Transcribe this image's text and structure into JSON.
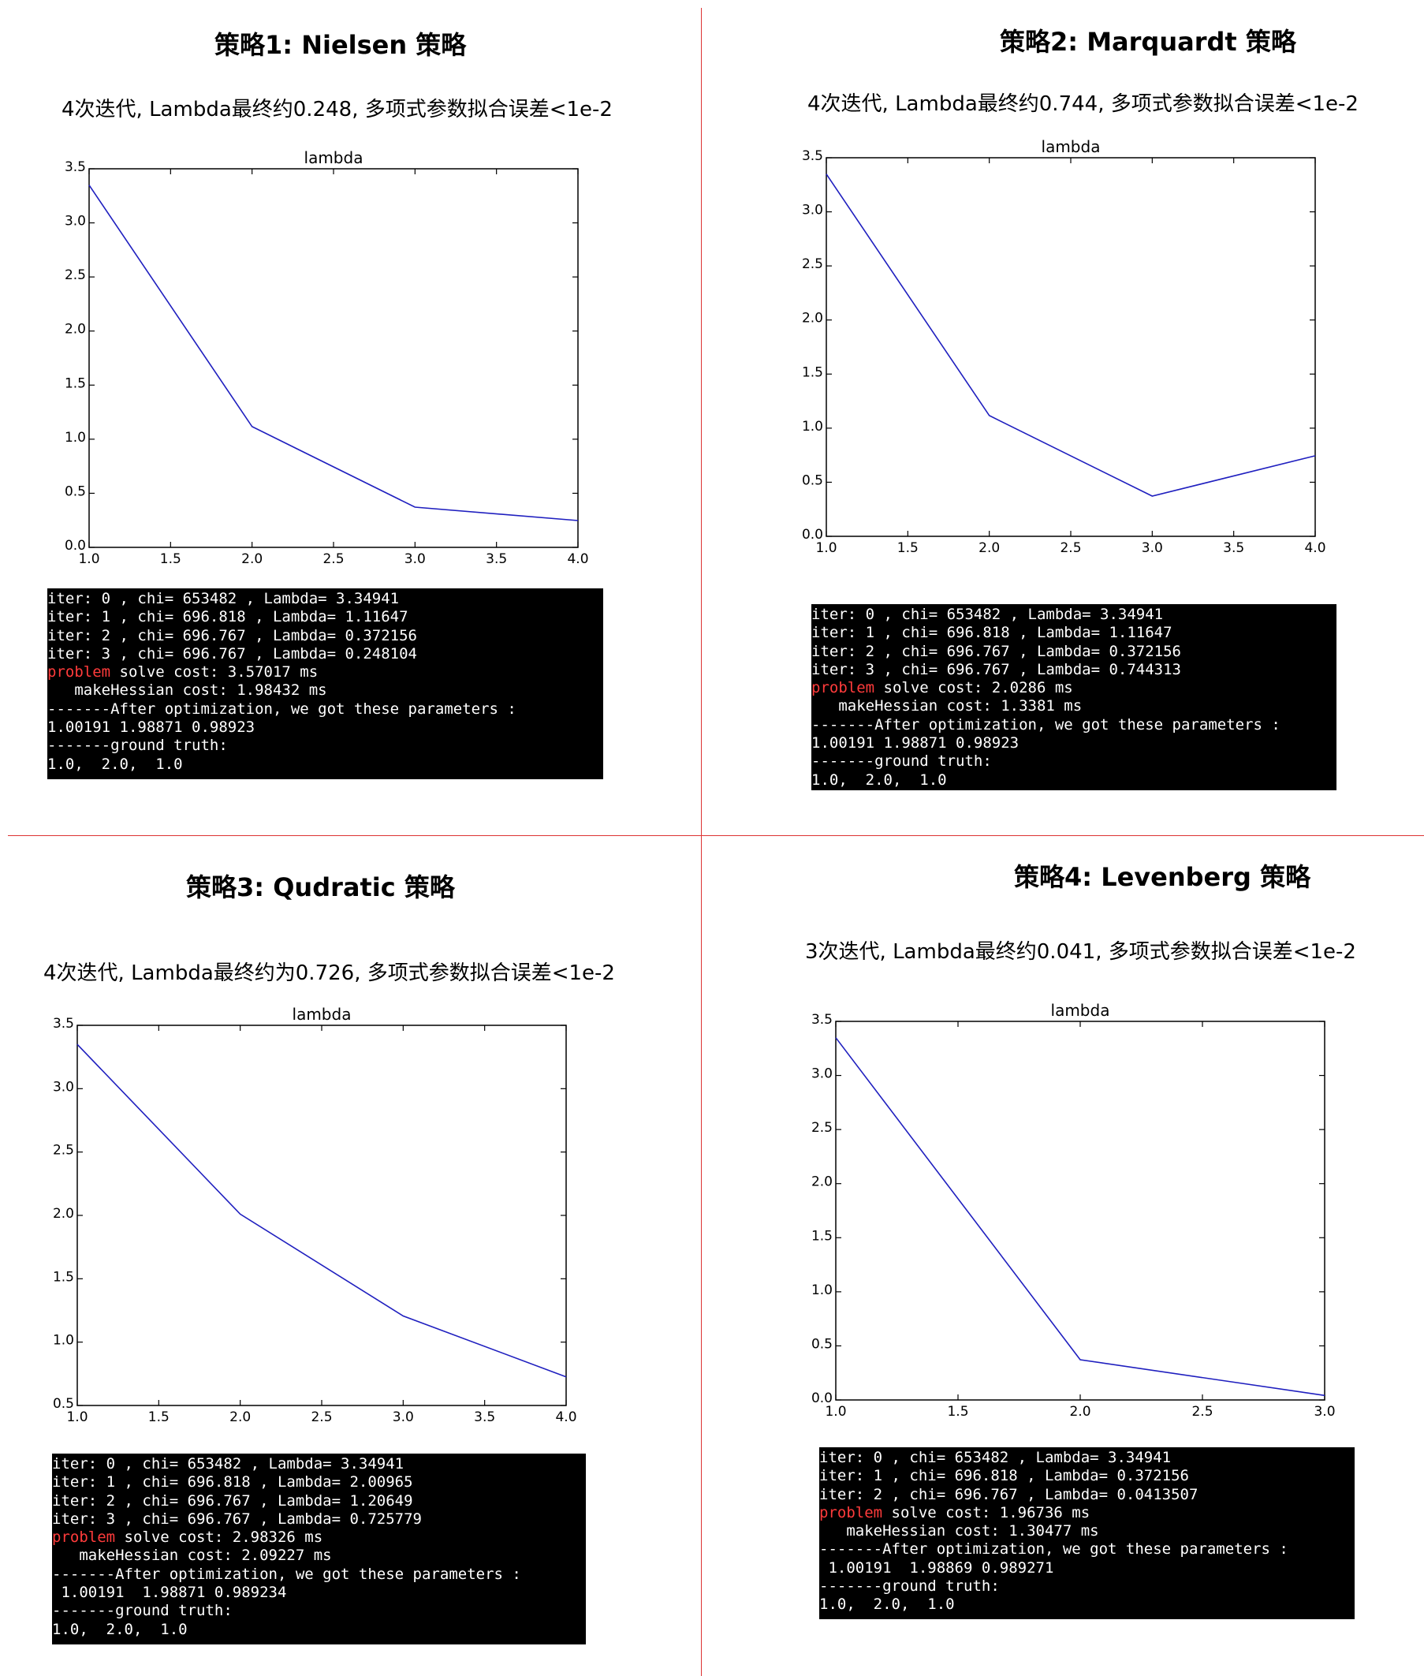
{
  "colors": {
    "series": "#1f1fbf",
    "divider": "#dd3333",
    "keyword": "#ff3b3b"
  },
  "panels": [
    {
      "title": "策略1: Nielsen 策略",
      "subtitle": "4次迭代, Lambda最终约0.248, 多项式参数拟合误差<1e-2",
      "chart_data": {
        "type": "line",
        "title": "lambda",
        "xlabel": "",
        "ylabel": "",
        "x": [
          1.0,
          2.0,
          3.0,
          4.0
        ],
        "series": [
          {
            "values": [
              3.34941,
              1.11647,
              0.372156,
              0.248104
            ]
          }
        ],
        "xlim": [
          1.0,
          4.0
        ],
        "ylim": [
          0.0,
          3.5
        ],
        "xticks": [
          "1.0",
          "1.5",
          "2.0",
          "2.5",
          "3.0",
          "3.5",
          "4.0"
        ],
        "yticks": [
          "0.0",
          "0.5",
          "1.0",
          "1.5",
          "2.0",
          "2.5",
          "3.0",
          "3.5"
        ],
        "grid": false
      },
      "terminal": [
        {
          "text": "iter: 0 , chi= 653482 , Lambda= 3.34941"
        },
        {
          "text": "iter: 1 , chi= 696.818 , Lambda= 1.11647"
        },
        {
          "text": "iter: 2 , chi= 696.767 , Lambda= 0.372156"
        },
        {
          "text": "iter: 3 , chi= 696.767 , Lambda= 0.248104"
        },
        {
          "kw": "problem",
          "text": " solve cost: 3.57017 ms"
        },
        {
          "text": "   makeHessian cost: 1.98432 ms"
        },
        {
          "text": "-------After optimization, we got these parameters :"
        },
        {
          "text": "1.00191 1.98871 0.98923"
        },
        {
          "text": "-------ground truth:"
        },
        {
          "text": "1.0,  2.0,  1.0"
        }
      ]
    },
    {
      "title": "策略2: Marquardt 策略",
      "subtitle": "4次迭代, Lambda最终约0.744, 多项式参数拟合误差<1e-2",
      "chart_data": {
        "type": "line",
        "title": "lambda",
        "xlabel": "",
        "ylabel": "",
        "x": [
          1.0,
          2.0,
          3.0,
          4.0
        ],
        "series": [
          {
            "values": [
              3.34941,
              1.11647,
              0.372156,
              0.744313
            ]
          }
        ],
        "xlim": [
          1.0,
          4.0
        ],
        "ylim": [
          0.0,
          3.5
        ],
        "xticks": [
          "1.0",
          "1.5",
          "2.0",
          "2.5",
          "3.0",
          "3.5",
          "4.0"
        ],
        "yticks": [
          "0.0",
          "0.5",
          "1.0",
          "1.5",
          "2.0",
          "2.5",
          "3.0",
          "3.5"
        ],
        "grid": false
      },
      "terminal": [
        {
          "text": "iter: 0 , chi= 653482 , Lambda= 3.34941"
        },
        {
          "text": "iter: 1 , chi= 696.818 , Lambda= 1.11647"
        },
        {
          "text": "iter: 2 , chi= 696.767 , Lambda= 0.372156"
        },
        {
          "text": "iter: 3 , chi= 696.767 , Lambda= 0.744313"
        },
        {
          "kw": "problem",
          "text": " solve cost: 2.0286 ms"
        },
        {
          "text": "   makeHessian cost: 1.3381 ms"
        },
        {
          "text": "-------After optimization, we got these parameters :"
        },
        {
          "text": "1.00191 1.98871 0.98923"
        },
        {
          "text": "-------ground truth:"
        },
        {
          "text": "1.0,  2.0,  1.0"
        }
      ]
    },
    {
      "title": "策略3: Qudratic 策略",
      "subtitle": "4次迭代, Lambda最终约为0.726, 多项式参数拟合误差<1e-2",
      "chart_data": {
        "type": "line",
        "title": "lambda",
        "xlabel": "",
        "ylabel": "",
        "x": [
          1.0,
          2.0,
          3.0,
          4.0
        ],
        "series": [
          {
            "values": [
              3.34941,
              2.00965,
              1.20649,
              0.725779
            ]
          }
        ],
        "xlim": [
          1.0,
          4.0
        ],
        "ylim": [
          0.5,
          3.5
        ],
        "xticks": [
          "1.0",
          "1.5",
          "2.0",
          "2.5",
          "3.0",
          "3.5",
          "4.0"
        ],
        "yticks": [
          "0.5",
          "1.0",
          "1.5",
          "2.0",
          "2.5",
          "3.0",
          "3.5"
        ],
        "grid": false
      },
      "terminal": [
        {
          "text": "iter: 0 , chi= 653482 , Lambda= 3.34941"
        },
        {
          "text": "iter: 1 , chi= 696.818 , Lambda= 2.00965"
        },
        {
          "text": "iter: 2 , chi= 696.767 , Lambda= 1.20649"
        },
        {
          "text": "iter: 3 , chi= 696.767 , Lambda= 0.725779"
        },
        {
          "kw": "problem",
          "text": " solve cost: 2.98326 ms"
        },
        {
          "text": "   makeHessian cost: 2.09227 ms"
        },
        {
          "text": "-------After optimization, we got these parameters :"
        },
        {
          "text": " 1.00191  1.98871 0.989234"
        },
        {
          "text": "-------ground truth:"
        },
        {
          "text": "1.0,  2.0,  1.0"
        }
      ]
    },
    {
      "title": "策略4: Levenberg 策略",
      "subtitle": "3次迭代, Lambda最终约0.041, 多项式参数拟合误差<1e-2",
      "chart_data": {
        "type": "line",
        "title": "lambda",
        "xlabel": "",
        "ylabel": "",
        "x": [
          1.0,
          2.0,
          3.0
        ],
        "series": [
          {
            "values": [
              3.34941,
              0.372156,
              0.0413507
            ]
          }
        ],
        "xlim": [
          1.0,
          3.0
        ],
        "ylim": [
          0.0,
          3.5
        ],
        "xticks": [
          "1.0",
          "1.5",
          "2.0",
          "2.5",
          "3.0"
        ],
        "yticks": [
          "0.0",
          "0.5",
          "1.0",
          "1.5",
          "2.0",
          "2.5",
          "3.0",
          "3.5"
        ],
        "grid": false
      },
      "terminal": [
        {
          "text": "iter: 0 , chi= 653482 , Lambda= 3.34941"
        },
        {
          "text": "iter: 1 , chi= 696.818 , Lambda= 0.372156"
        },
        {
          "text": "iter: 2 , chi= 696.767 , Lambda= 0.0413507"
        },
        {
          "kw": "problem",
          "text": " solve cost: 1.96736 ms"
        },
        {
          "text": "   makeHessian cost: 1.30477 ms"
        },
        {
          "text": "-------After optimization, we got these parameters :"
        },
        {
          "text": " 1.00191  1.98869 0.989271"
        },
        {
          "text": "-------ground truth:"
        },
        {
          "text": "1.0,  2.0,  1.0"
        }
      ]
    }
  ]
}
